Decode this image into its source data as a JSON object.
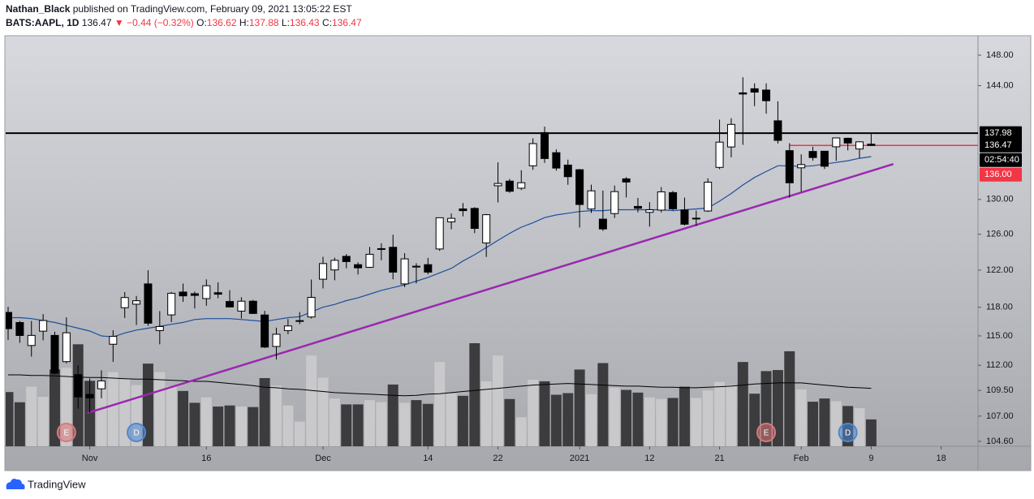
{
  "header": {
    "author": "Nathan_Black",
    "published": "published on TradingView.com, February 09, 2021 13:05:22 EST",
    "symbol": "BATS:AAPL, 1D",
    "last": "136.47",
    "change": "▼ −0.44 (−0.32%)",
    "ohlc": [
      {
        "key": "O:",
        "value": "136.62"
      },
      {
        "key": "H:",
        "value": "137.88"
      },
      {
        "key": "L:",
        "value": "136.43"
      },
      {
        "key": "C:",
        "value": "136.47"
      }
    ]
  },
  "chart_data": {
    "type": "candlestick",
    "log_scale": true,
    "ylim": [
      104.14,
      150.5
    ],
    "yticks": [
      {
        "value": 148,
        "label": "148.00"
      },
      {
        "value": 144,
        "label": "144.00"
      },
      {
        "value": 130,
        "label": "130.00"
      },
      {
        "value": 126,
        "label": "126.00"
      },
      {
        "value": 122,
        "label": "122.00"
      },
      {
        "value": 118,
        "label": "118.00"
      },
      {
        "value": 115,
        "label": "115.00"
      },
      {
        "value": 112,
        "label": "112.00"
      },
      {
        "value": 109.5,
        "label": "109.50"
      },
      {
        "value": 107,
        "label": "107.00"
      },
      {
        "value": 104.6,
        "label": "104.60"
      }
    ],
    "xticks": [
      {
        "value": 7,
        "label": "Nov"
      },
      {
        "value": 17,
        "label": "16"
      },
      {
        "value": 27,
        "label": "Dec"
      },
      {
        "value": 36,
        "label": "14"
      },
      {
        "value": 42,
        "label": "22"
      },
      {
        "value": 49,
        "label": "2021"
      },
      {
        "value": 55,
        "label": "12"
      },
      {
        "value": 61,
        "label": "21"
      },
      {
        "value": 68,
        "label": "Feb"
      },
      {
        "value": 74,
        "label": "9"
      },
      {
        "value": 80,
        "label": "18"
      }
    ],
    "open": [
      117.45,
      116.39,
      114.01,
      115.49,
      115.05,
      112.37,
      111.06,
      109.11,
      109.66,
      114.14,
      117.95,
      118.32,
      120.5,
      115.55,
      117.19,
      119.62,
      119.44,
      118.92,
      119.55,
      118.61,
      117.59,
      118.64,
      117.18,
      113.91,
      115.55,
      116.57,
      116.97,
      121.01,
      122.02,
      123.52,
      122.6,
      122.31,
      124.37,
      124.53,
      120.5,
      122.43,
      122.6,
      124.34,
      127.41,
      128.9,
      128.96,
      125.02,
      131.61,
      132.16,
      131.32,
      133.99,
      138.05,
      135.58,
      134.08,
      133.52,
      128.89,
      127.72,
      128.36,
      132.43,
      129.19,
      128.5,
      128.76,
      130.8,
      128.78,
      127.78,
      128.66,
      133.8,
      136.28,
      143.07,
      143.6,
      143.43,
      139.52,
      135.83,
      133.75,
      135.73,
      135.76,
      136.3,
      137.35,
      136.03,
      136.62
    ],
    "high": [
      118.04,
      116.55,
      116.55,
      117.28,
      115.43,
      116.93,
      111.99,
      110.68,
      111.49,
      115.59,
      119.62,
      119.2,
      121.99,
      117.59,
      119.63,
      120.53,
      119.67,
      120.99,
      120.67,
      119.82,
      119.06,
      118.77,
      117.62,
      115.85,
      116.75,
      117.49,
      120.97,
      123.47,
      123.37,
      123.78,
      122.86,
      124.57,
      124.98,
      125.95,
      123.87,
      122.76,
      123.35,
      127.9,
      128.37,
      129.58,
      129.1,
      128.31,
      134.41,
      132.43,
      133.46,
      137.34,
      138.79,
      135.99,
      134.74,
      133.61,
      131.74,
      131.05,
      131.63,
      132.63,
      130.17,
      129.69,
      131.45,
      131.0,
      130.22,
      128.71,
      132.49,
      139.67,
      139.85,
      145.09,
      144.3,
      144.3,
      141.99,
      136.74,
      135.38,
      136.31,
      135.77,
      137.4,
      137.42,
      136.96,
      137.88
    ],
    "low": [
      114.59,
      114.28,
      112.88,
      114.54,
      111.1,
      112.2,
      107.72,
      107.32,
      108.73,
      112.35,
      116.87,
      116.13,
      116.05,
      114.13,
      116.44,
      118.57,
      117.87,
      118.15,
      118.96,
      118.0,
      116.81,
      117.29,
      113.75,
      112.59,
      115.17,
      116.22,
      116.81,
      120.01,
      120.89,
      122.21,
      121.52,
      122.25,
      123.09,
      121.0,
      120.15,
      120.55,
      121.54,
      124.13,
      126.56,
      128.04,
      126.12,
      123.45,
      129.65,
      130.78,
      131.1,
      133.51,
      134.34,
      133.4,
      131.72,
      126.76,
      128.43,
      126.38,
      127.86,
      130.23,
      128.5,
      126.86,
      128.49,
      128.76,
      127.0,
      126.94,
      128.55,
      133.59,
      135.02,
      136.54,
      141.37,
      140.41,
      136.7,
      130.21,
      130.93,
      134.61,
      133.61,
      134.59,
      135.86,
      134.92,
      136.43
    ],
    "close": [
      115.75,
      115.04,
      115.05,
      116.6,
      111.2,
      115.32,
      108.86,
      108.77,
      110.44,
      114.95,
      119.03,
      118.69,
      116.32,
      115.97,
      119.49,
      119.21,
      119.26,
      120.3,
      119.39,
      118.03,
      118.64,
      117.34,
      113.85,
      115.17,
      116.03,
      116.59,
      119.05,
      122.72,
      123.08,
      122.94,
      122.25,
      123.75,
      124.38,
      121.78,
      123.24,
      122.41,
      121.78,
      127.88,
      127.81,
      128.7,
      126.66,
      128.23,
      131.88,
      130.96,
      131.97,
      136.69,
      134.87,
      133.72,
      132.69,
      129.41,
      131.01,
      126.6,
      130.92,
      132.05,
      128.98,
      128.8,
      130.89,
      128.91,
      127.14,
      127.83,
      132.03,
      136.87,
      139.07,
      142.92,
      143.16,
      142.06,
      137.09,
      131.96,
      134.14,
      134.99,
      133.94,
      137.39,
      136.76,
      136.91,
      136.47
    ],
    "up_color": "#ffffff",
    "down_color": "#000000",
    "volume": [
      101,
      82,
      111,
      92,
      143,
      146,
      190,
      122,
      107,
      138,
      126,
      114,
      154,
      138,
      112,
      103,
      81,
      91,
      74,
      76,
      74,
      73,
      127,
      113,
      76,
      46,
      169,
      128,
      89,
      78,
      78,
      86,
      82,
      115,
      81,
      86,
      79,
      157,
      98,
      94,
      192,
      121,
      169,
      88,
      54,
      124,
      121,
      96,
      99,
      143,
      97,
      155,
      109,
      105,
      100,
      91,
      88,
      90,
      111,
      90,
      104,
      120,
      114,
      157,
      98,
      140,
      142,
      177,
      106,
      83,
      89,
      84,
      75,
      71,
      50
    ],
    "volume_up_color": "#c9c9cb",
    "volume_down_color": "#3c3c3e",
    "ma": {
      "color": "#1f4e9c",
      "values": [
        116.9,
        116.9,
        116.8,
        116.6,
        116.4,
        116.1,
        115.8,
        115.5,
        115.0,
        114.9,
        115.3,
        115.6,
        115.8,
        116.0,
        116.2,
        116.4,
        116.7,
        116.8,
        116.8,
        116.8,
        116.7,
        116.6,
        116.5,
        116.7,
        116.9,
        117.0,
        117.5,
        118.0,
        118.3,
        118.7,
        119.0,
        119.4,
        119.8,
        120.1,
        120.4,
        120.8,
        121.2,
        121.7,
        122.2,
        123.0,
        123.7,
        124.5,
        125.3,
        126.1,
        126.8,
        127.3,
        127.9,
        128.2,
        128.4,
        128.6,
        128.7,
        128.7,
        128.8,
        128.8,
        128.8,
        128.8,
        128.8,
        128.7,
        128.8,
        128.9,
        129.0,
        129.8,
        130.7,
        131.7,
        132.6,
        133.3,
        134.0,
        134.0,
        133.9,
        134.0,
        134.2,
        134.4,
        134.6,
        134.9,
        135.1
      ]
    },
    "volume_ma": {
      "color": "#000000",
      "values": [
        133,
        133,
        132,
        132,
        131,
        130,
        129,
        128,
        128,
        127,
        126,
        125,
        125,
        124,
        123,
        122,
        121,
        121,
        119,
        117,
        115,
        113,
        110,
        109,
        107,
        106,
        104,
        102,
        100,
        99,
        98,
        97,
        96,
        95,
        94,
        95,
        97,
        98,
        100,
        102,
        104,
        106,
        108,
        110,
        112,
        114,
        115,
        116,
        117,
        116,
        115,
        114,
        113,
        112,
        112,
        111,
        110,
        110,
        109,
        109,
        110,
        111,
        112,
        114,
        116,
        117,
        118,
        118,
        118,
        116,
        114,
        112,
        110,
        109,
        108
      ]
    },
    "hline": {
      "value": 137.98,
      "color": "#000000",
      "label": "137.98"
    },
    "last_line": {
      "value": 136.47,
      "color": "#f23645",
      "start": 67,
      "label": "136.47",
      "countdown": "02:54:40"
    },
    "alert_label": {
      "label": "136.00",
      "color": "#f23645"
    },
    "trendline": {
      "x": [
        6.8,
        75.9
      ],
      "y": [
        107.3,
        134.2
      ],
      "color": "#9c27b0"
    },
    "events": [
      {
        "index": 5,
        "label": "E",
        "color": "#d9777a"
      },
      {
        "index": 11,
        "label": "D",
        "color": "#4f86cf"
      },
      {
        "index": 65,
        "label": "E",
        "color": "#d9777a"
      },
      {
        "index": 72,
        "label": "D",
        "color": "#4f86cf"
      }
    ]
  },
  "footer": {
    "brand": "TradingView"
  }
}
